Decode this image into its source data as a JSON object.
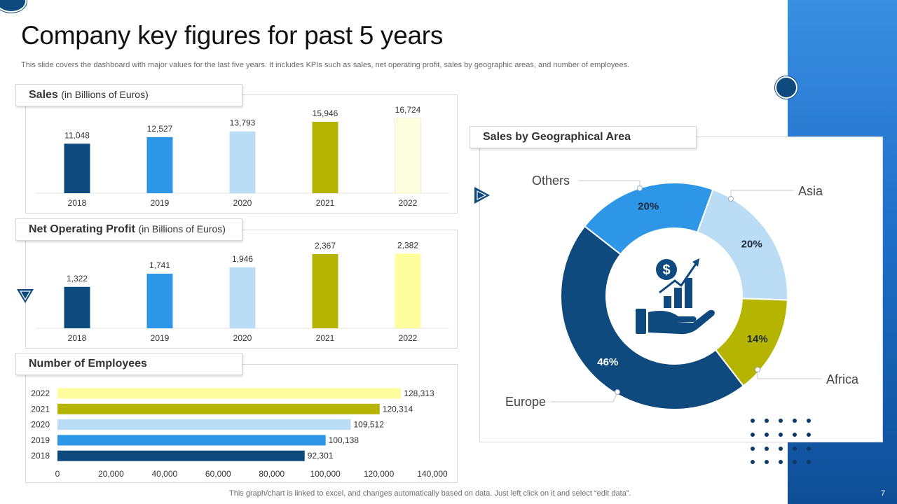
{
  "page": {
    "title": "Company key figures for past 5 years",
    "subtitle": "This slide covers the dashboard with major values for the last five years. It includes KPIs such as sales, net operating profit, sales by geographic areas, and number of employees.",
    "footer_note": "This graph/chart is linked to excel,  and changes automatically based on data. Just left click on it and select “edit data”.",
    "page_number": "7"
  },
  "colors": {
    "navy": "#0e4a7e",
    "blue": "#2e96e6",
    "light_blue": "#bbdcf5",
    "olive": "#b5b400",
    "cream": "#fdfede",
    "pale_yellow": "#fdfd9e",
    "band": "#1f6fcb"
  },
  "sales": {
    "title": "Sales",
    "unit": "(in Billions  of Euros)"
  },
  "profit": {
    "title": "Net Operating Profit",
    "unit": "(in Billions of Euros)"
  },
  "employees": {
    "title": "Number of Employees"
  },
  "geo": {
    "title": "Sales by Geographical Area"
  },
  "chart_data": [
    {
      "id": "sales",
      "type": "bar",
      "title": "Sales (in Billions  of Euros)",
      "categories": [
        "2018",
        "2019",
        "2020",
        "2021",
        "2022"
      ],
      "values": [
        11048,
        12527,
        13793,
        15946,
        16724
      ],
      "labels": [
        "11,048",
        "12,527",
        "13,793",
        "15,946",
        "16,724"
      ],
      "colors": [
        "#0e4a7e",
        "#2e96e6",
        "#bbdcf5",
        "#b5b400",
        "#fdfede"
      ],
      "ylim": [
        0,
        17500
      ]
    },
    {
      "id": "profit",
      "type": "bar",
      "title": "Net Operating Profit (in Billions of Euros)",
      "categories": [
        "2018",
        "2019",
        "2020",
        "2021",
        "2022"
      ],
      "values": [
        1322,
        1741,
        1946,
        2367,
        2382
      ],
      "labels": [
        "1,322",
        "1,741",
        "1,946",
        "2,367",
        "2,382"
      ],
      "colors": [
        "#0e4a7e",
        "#2e96e6",
        "#bbdcf5",
        "#b5b400",
        "#fdfd9e"
      ],
      "ylim": [
        0,
        2500
      ]
    },
    {
      "id": "employees",
      "type": "bar",
      "orientation": "horizontal",
      "title": "Number of Employees",
      "categories": [
        "2022",
        "2021",
        "2020",
        "2019",
        "2018"
      ],
      "values": [
        128313,
        120314,
        109512,
        100138,
        92301
      ],
      "labels": [
        "128,313",
        "120,314",
        "109,512",
        "100,138",
        "92,301"
      ],
      "colors": [
        "#fdfd9e",
        "#b5b400",
        "#bbdcf5",
        "#2e96e6",
        "#0e4a7e"
      ],
      "xlim": [
        0,
        140000
      ],
      "xticks": [
        "0",
        "20,000",
        "40,000",
        "60,000",
        "80,000",
        "100,000",
        "120,000",
        "140,000"
      ]
    },
    {
      "id": "geo",
      "type": "pie",
      "donut": true,
      "title": "Sales by Geographical Area",
      "categories": [
        "Others",
        "Asia",
        "Africa",
        "Europe"
      ],
      "values": [
        20,
        20,
        14,
        46
      ],
      "labels": [
        "20%",
        "20%",
        "14%",
        "46%"
      ],
      "colors": [
        "#2e96e6",
        "#bbdcf5",
        "#b5b400",
        "#0e4a7e"
      ]
    }
  ]
}
